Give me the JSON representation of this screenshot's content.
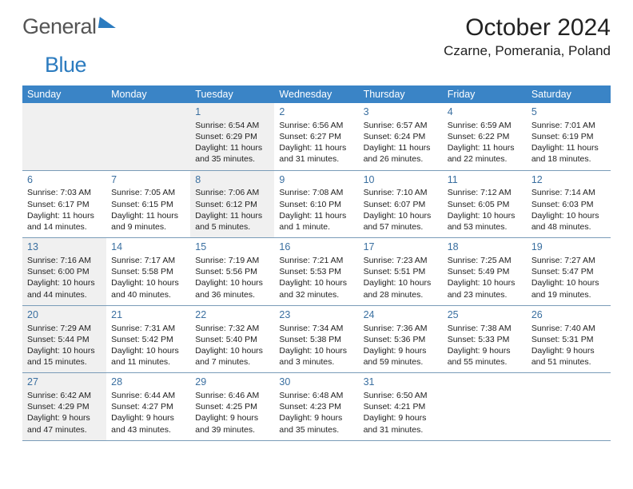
{
  "logo": {
    "part1": "General",
    "part2": "Blue"
  },
  "title": "October 2024",
  "location": "Czarne, Pomerania, Poland",
  "header_bg": "#3a84c6",
  "header_fg": "#ffffff",
  "daynum_color": "#3a6fa0",
  "shaded_bg": "#f0f0f0",
  "day_headers": [
    "Sunday",
    "Monday",
    "Tuesday",
    "Wednesday",
    "Thursday",
    "Friday",
    "Saturday"
  ],
  "weeks": [
    [
      {
        "day": "",
        "sunrise": "",
        "sunset": "",
        "daylight": "",
        "shaded": true
      },
      {
        "day": "",
        "sunrise": "",
        "sunset": "",
        "daylight": "",
        "shaded": true
      },
      {
        "day": "1",
        "sunrise": "Sunrise: 6:54 AM",
        "sunset": "Sunset: 6:29 PM",
        "daylight": "Daylight: 11 hours and 35 minutes.",
        "shaded": true
      },
      {
        "day": "2",
        "sunrise": "Sunrise: 6:56 AM",
        "sunset": "Sunset: 6:27 PM",
        "daylight": "Daylight: 11 hours and 31 minutes.",
        "shaded": false
      },
      {
        "day": "3",
        "sunrise": "Sunrise: 6:57 AM",
        "sunset": "Sunset: 6:24 PM",
        "daylight": "Daylight: 11 hours and 26 minutes.",
        "shaded": false
      },
      {
        "day": "4",
        "sunrise": "Sunrise: 6:59 AM",
        "sunset": "Sunset: 6:22 PM",
        "daylight": "Daylight: 11 hours and 22 minutes.",
        "shaded": false
      },
      {
        "day": "5",
        "sunrise": "Sunrise: 7:01 AM",
        "sunset": "Sunset: 6:19 PM",
        "daylight": "Daylight: 11 hours and 18 minutes.",
        "shaded": false
      }
    ],
    [
      {
        "day": "6",
        "sunrise": "Sunrise: 7:03 AM",
        "sunset": "Sunset: 6:17 PM",
        "daylight": "Daylight: 11 hours and 14 minutes.",
        "shaded": false
      },
      {
        "day": "7",
        "sunrise": "Sunrise: 7:05 AM",
        "sunset": "Sunset: 6:15 PM",
        "daylight": "Daylight: 11 hours and 9 minutes.",
        "shaded": false
      },
      {
        "day": "8",
        "sunrise": "Sunrise: 7:06 AM",
        "sunset": "Sunset: 6:12 PM",
        "daylight": "Daylight: 11 hours and 5 minutes.",
        "shaded": true
      },
      {
        "day": "9",
        "sunrise": "Sunrise: 7:08 AM",
        "sunset": "Sunset: 6:10 PM",
        "daylight": "Daylight: 11 hours and 1 minute.",
        "shaded": false
      },
      {
        "day": "10",
        "sunrise": "Sunrise: 7:10 AM",
        "sunset": "Sunset: 6:07 PM",
        "daylight": "Daylight: 10 hours and 57 minutes.",
        "shaded": false
      },
      {
        "day": "11",
        "sunrise": "Sunrise: 7:12 AM",
        "sunset": "Sunset: 6:05 PM",
        "daylight": "Daylight: 10 hours and 53 minutes.",
        "shaded": false
      },
      {
        "day": "12",
        "sunrise": "Sunrise: 7:14 AM",
        "sunset": "Sunset: 6:03 PM",
        "daylight": "Daylight: 10 hours and 48 minutes.",
        "shaded": false
      }
    ],
    [
      {
        "day": "13",
        "sunrise": "Sunrise: 7:16 AM",
        "sunset": "Sunset: 6:00 PM",
        "daylight": "Daylight: 10 hours and 44 minutes.",
        "shaded": true
      },
      {
        "day": "14",
        "sunrise": "Sunrise: 7:17 AM",
        "sunset": "Sunset: 5:58 PM",
        "daylight": "Daylight: 10 hours and 40 minutes.",
        "shaded": false
      },
      {
        "day": "15",
        "sunrise": "Sunrise: 7:19 AM",
        "sunset": "Sunset: 5:56 PM",
        "daylight": "Daylight: 10 hours and 36 minutes.",
        "shaded": false
      },
      {
        "day": "16",
        "sunrise": "Sunrise: 7:21 AM",
        "sunset": "Sunset: 5:53 PM",
        "daylight": "Daylight: 10 hours and 32 minutes.",
        "shaded": false
      },
      {
        "day": "17",
        "sunrise": "Sunrise: 7:23 AM",
        "sunset": "Sunset: 5:51 PM",
        "daylight": "Daylight: 10 hours and 28 minutes.",
        "shaded": false
      },
      {
        "day": "18",
        "sunrise": "Sunrise: 7:25 AM",
        "sunset": "Sunset: 5:49 PM",
        "daylight": "Daylight: 10 hours and 23 minutes.",
        "shaded": false
      },
      {
        "day": "19",
        "sunrise": "Sunrise: 7:27 AM",
        "sunset": "Sunset: 5:47 PM",
        "daylight": "Daylight: 10 hours and 19 minutes.",
        "shaded": false
      }
    ],
    [
      {
        "day": "20",
        "sunrise": "Sunrise: 7:29 AM",
        "sunset": "Sunset: 5:44 PM",
        "daylight": "Daylight: 10 hours and 15 minutes.",
        "shaded": true
      },
      {
        "day": "21",
        "sunrise": "Sunrise: 7:31 AM",
        "sunset": "Sunset: 5:42 PM",
        "daylight": "Daylight: 10 hours and 11 minutes.",
        "shaded": false
      },
      {
        "day": "22",
        "sunrise": "Sunrise: 7:32 AM",
        "sunset": "Sunset: 5:40 PM",
        "daylight": "Daylight: 10 hours and 7 minutes.",
        "shaded": false
      },
      {
        "day": "23",
        "sunrise": "Sunrise: 7:34 AM",
        "sunset": "Sunset: 5:38 PM",
        "daylight": "Daylight: 10 hours and 3 minutes.",
        "shaded": false
      },
      {
        "day": "24",
        "sunrise": "Sunrise: 7:36 AM",
        "sunset": "Sunset: 5:36 PM",
        "daylight": "Daylight: 9 hours and 59 minutes.",
        "shaded": false
      },
      {
        "day": "25",
        "sunrise": "Sunrise: 7:38 AM",
        "sunset": "Sunset: 5:33 PM",
        "daylight": "Daylight: 9 hours and 55 minutes.",
        "shaded": false
      },
      {
        "day": "26",
        "sunrise": "Sunrise: 7:40 AM",
        "sunset": "Sunset: 5:31 PM",
        "daylight": "Daylight: 9 hours and 51 minutes.",
        "shaded": false
      }
    ],
    [
      {
        "day": "27",
        "sunrise": "Sunrise: 6:42 AM",
        "sunset": "Sunset: 4:29 PM",
        "daylight": "Daylight: 9 hours and 47 minutes.",
        "shaded": true
      },
      {
        "day": "28",
        "sunrise": "Sunrise: 6:44 AM",
        "sunset": "Sunset: 4:27 PM",
        "daylight": "Daylight: 9 hours and 43 minutes.",
        "shaded": false
      },
      {
        "day": "29",
        "sunrise": "Sunrise: 6:46 AM",
        "sunset": "Sunset: 4:25 PM",
        "daylight": "Daylight: 9 hours and 39 minutes.",
        "shaded": false
      },
      {
        "day": "30",
        "sunrise": "Sunrise: 6:48 AM",
        "sunset": "Sunset: 4:23 PM",
        "daylight": "Daylight: 9 hours and 35 minutes.",
        "shaded": false
      },
      {
        "day": "31",
        "sunrise": "Sunrise: 6:50 AM",
        "sunset": "Sunset: 4:21 PM",
        "daylight": "Daylight: 9 hours and 31 minutes.",
        "shaded": false
      },
      {
        "day": "",
        "sunrise": "",
        "sunset": "",
        "daylight": "",
        "shaded": false
      },
      {
        "day": "",
        "sunrise": "",
        "sunset": "",
        "daylight": "",
        "shaded": false
      }
    ]
  ]
}
